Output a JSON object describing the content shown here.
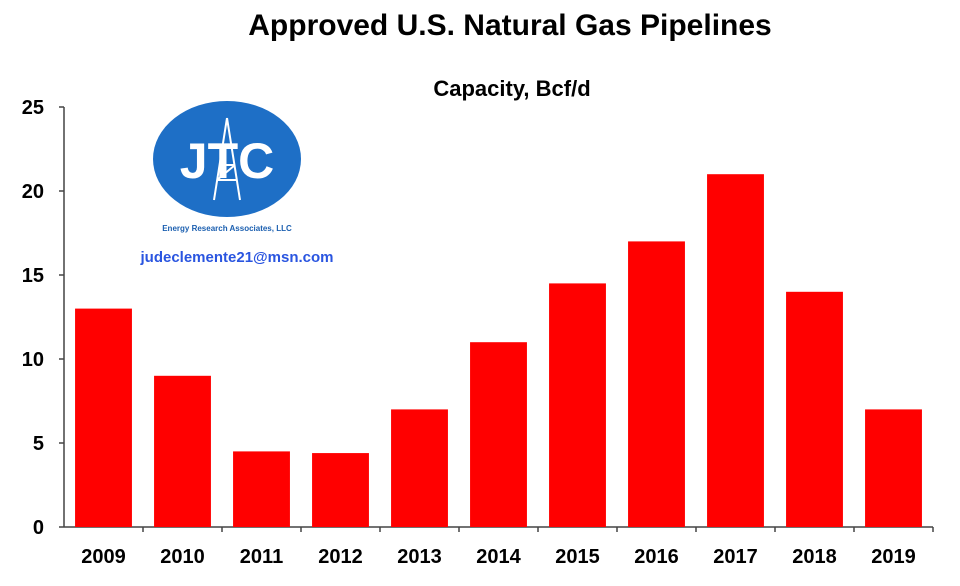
{
  "chart_data": {
    "type": "bar",
    "title": "Approved U.S. Natural Gas Pipelines",
    "subtitle": "Capacity, Bcf/d",
    "xlabel": "",
    "ylabel": "",
    "categories": [
      "2009",
      "2010",
      "2011",
      "2012",
      "2013",
      "2014",
      "2015",
      "2016",
      "2017",
      "2018",
      "2019"
    ],
    "values": [
      13,
      9,
      4.5,
      4.4,
      7,
      11,
      14.5,
      17,
      21,
      14,
      7
    ],
    "ylim": [
      0,
      25
    ],
    "yticks": [
      "0",
      "5",
      "10",
      "15",
      "20",
      "25"
    ],
    "bar_color": "#ff0000",
    "grid": false,
    "legend": "none"
  },
  "branding": {
    "logo_text": "JTC",
    "logo_subtext": "Energy Research Associates, LLC",
    "logo_color": "#1e6fc6",
    "email": "judeclemente21@msn.com"
  }
}
